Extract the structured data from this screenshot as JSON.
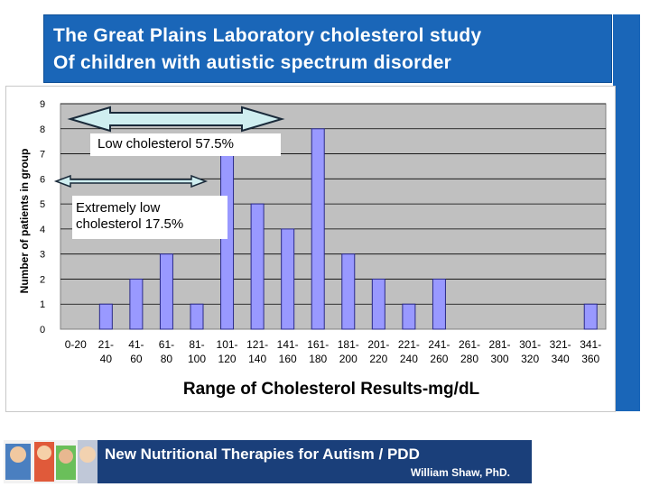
{
  "slide": {
    "title_line1": "The Great Plains Laboratory cholesterol study",
    "title_line2": "Of children with autistic spectrum disorder"
  },
  "annotations": {
    "low": "Low cholesterol 57.5%",
    "extremely_low": "Extremely low cholesterol 17.5%"
  },
  "footer": {
    "title": "New Nutritional Therapies for Autism / PDD",
    "author": "William Shaw, PhD."
  },
  "colors": {
    "title_bg": "#1a66b8",
    "plot_bg": "#c0c0c0",
    "bar_fill": "#9999ff",
    "bar_stroke": "#2a2a8a",
    "arrow_fill": "#cfeef0",
    "footer_bg": "#1a3f7a"
  },
  "chart_data": {
    "type": "bar",
    "xlabel": "Range of Cholesterol Results-mg/dL",
    "ylabel": "Number of patients in group",
    "ylim": [
      0,
      9
    ],
    "yticks": [
      0,
      1,
      2,
      3,
      4,
      5,
      6,
      7,
      8,
      9
    ],
    "grid": true,
    "categories": [
      {
        "line1": "0-20",
        "line2": ""
      },
      {
        "line1": "21-",
        "line2": "40"
      },
      {
        "line1": "41-",
        "line2": "60"
      },
      {
        "line1": "61-",
        "line2": "80"
      },
      {
        "line1": "81-",
        "line2": "100"
      },
      {
        "line1": "101-",
        "line2": "120"
      },
      {
        "line1": "121-",
        "line2": "140"
      },
      {
        "line1": "141-",
        "line2": "160"
      },
      {
        "line1": "161-",
        "line2": "180"
      },
      {
        "line1": "181-",
        "line2": "200"
      },
      {
        "line1": "201-",
        "line2": "220"
      },
      {
        "line1": "221-",
        "line2": "240"
      },
      {
        "line1": "241-",
        "line2": "260"
      },
      {
        "line1": "261-",
        "line2": "280"
      },
      {
        "line1": "281-",
        "line2": "300"
      },
      {
        "line1": "301-",
        "line2": "320"
      },
      {
        "line1": "321-",
        "line2": "340"
      },
      {
        "line1": "341-",
        "line2": "360"
      }
    ],
    "values": [
      0,
      1,
      2,
      3,
      1,
      7,
      5,
      4,
      8,
      3,
      2,
      1,
      2,
      0,
      0,
      0,
      0,
      1
    ]
  }
}
